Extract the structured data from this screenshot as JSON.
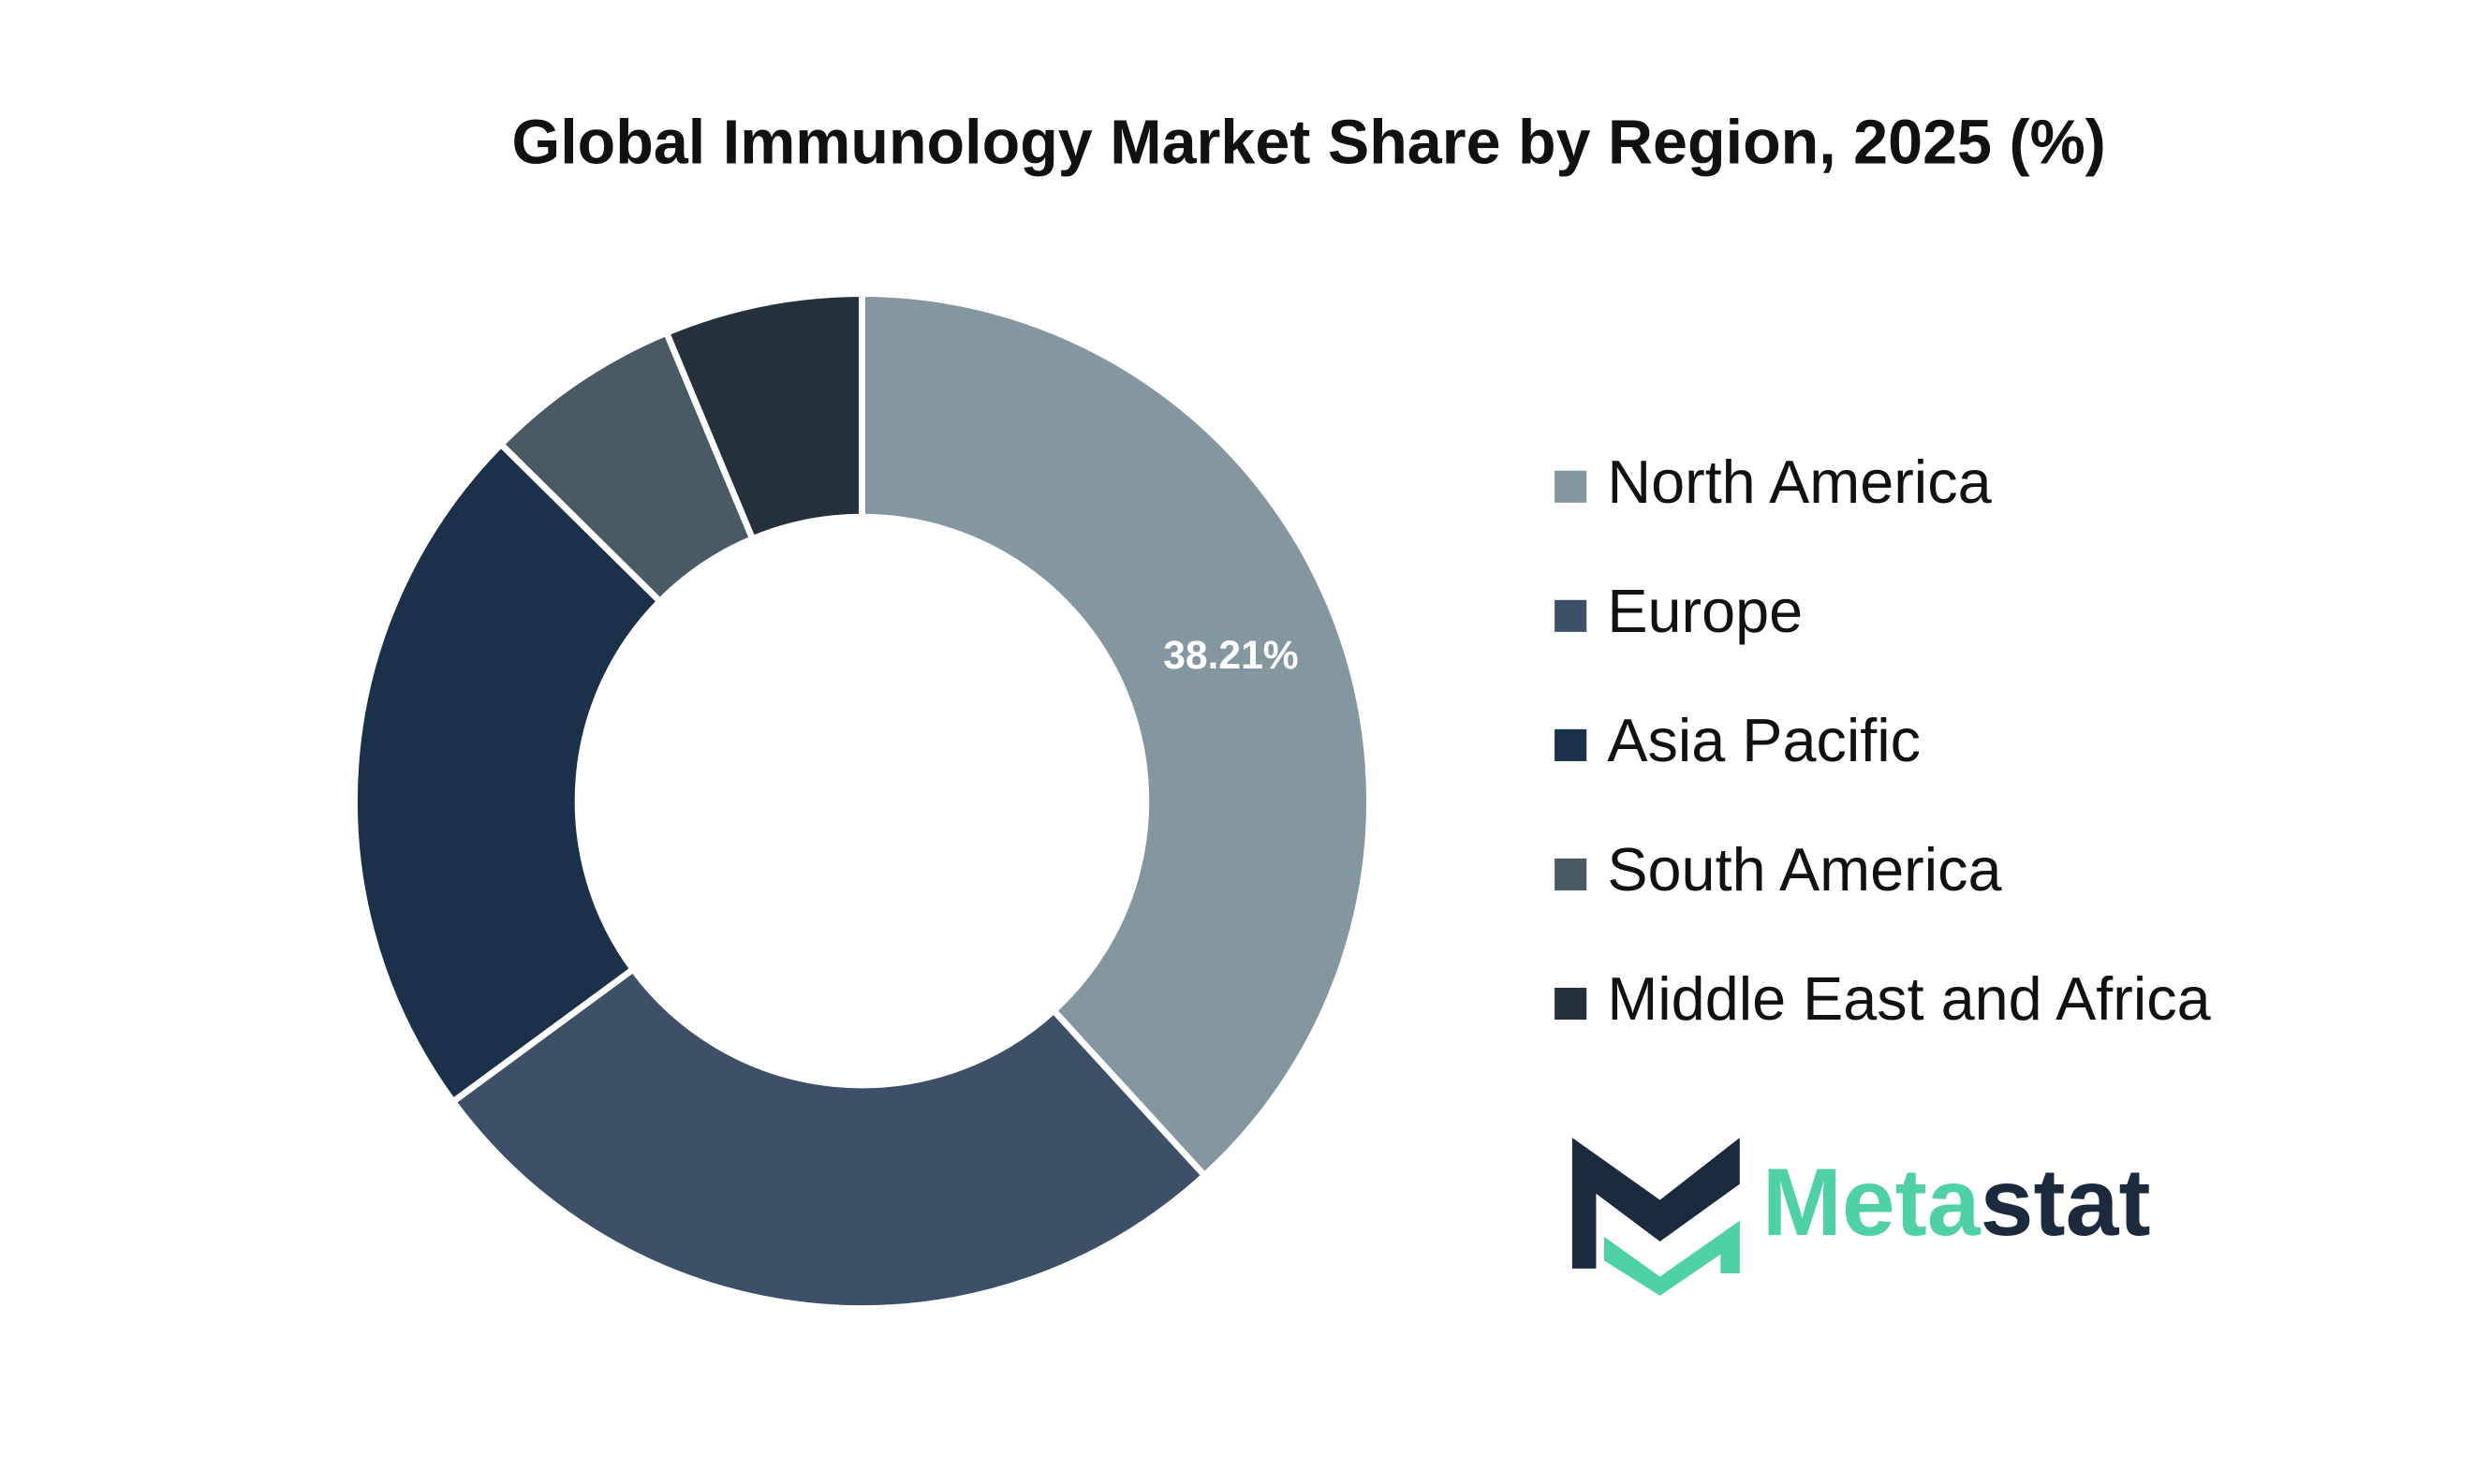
{
  "chart_data": {
    "type": "donut",
    "title": "Global Immunology Market Share by Region, 2025 (%)",
    "categories": [
      "North America",
      "Europe",
      "Asia Pacific",
      "South America",
      "Middle East and Africa"
    ],
    "values": [
      38.21,
      26.7,
      22.5,
      6.3,
      6.29
    ],
    "value_labels": [
      "38.21%",
      null,
      null,
      null,
      null
    ],
    "colors": [
      "#8497a1",
      "#3d5068",
      "#1b3149",
      "#4a5a64",
      "#25303d"
    ],
    "legend": "right"
  },
  "logo": [
    "Meta",
    "stat"
  ]
}
